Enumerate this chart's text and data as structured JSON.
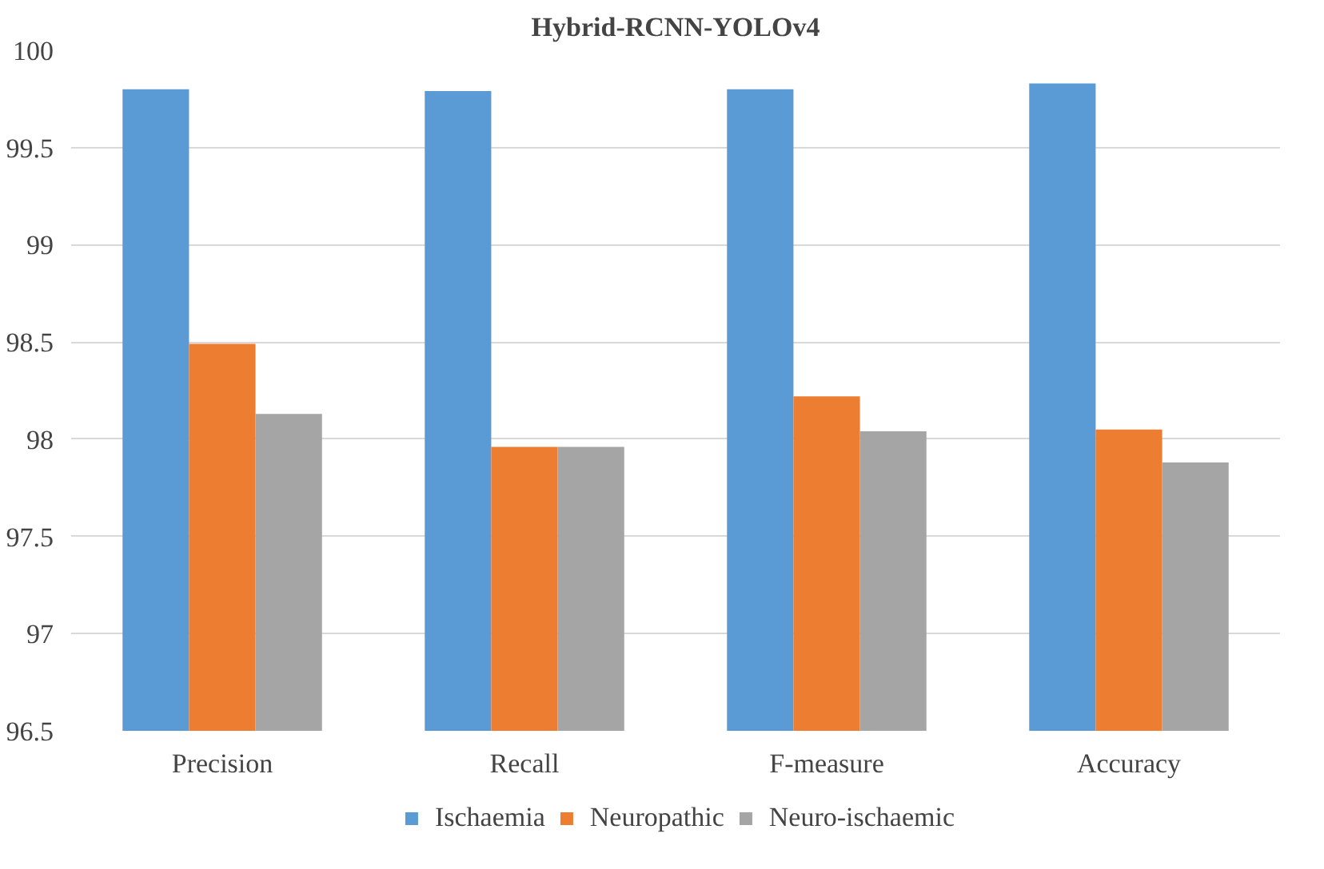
{
  "chart_data": {
    "type": "bar",
    "title": "Hybrid-RCNN-YOLOv4",
    "categories": [
      "Precision",
      "Recall",
      "F-measure",
      "Accuracy"
    ],
    "series": [
      {
        "name": "Ischaemia",
        "color": "#5b9bd5",
        "values": [
          99.8,
          99.79,
          99.8,
          99.83
        ]
      },
      {
        "name": "Neuropathic",
        "color": "#ed7d31",
        "values": [
          98.49,
          97.96,
          98.22,
          98.05
        ]
      },
      {
        "name": "Neuro-ischaemic",
        "color": "#a5a5a5",
        "values": [
          98.13,
          97.96,
          98.04,
          97.88
        ]
      }
    ],
    "ylim": [
      96.5,
      100
    ],
    "yticks": [
      96.5,
      97,
      97.5,
      98,
      98.5,
      99,
      99.5,
      100
    ],
    "grid": "y",
    "legend": "bottom"
  }
}
